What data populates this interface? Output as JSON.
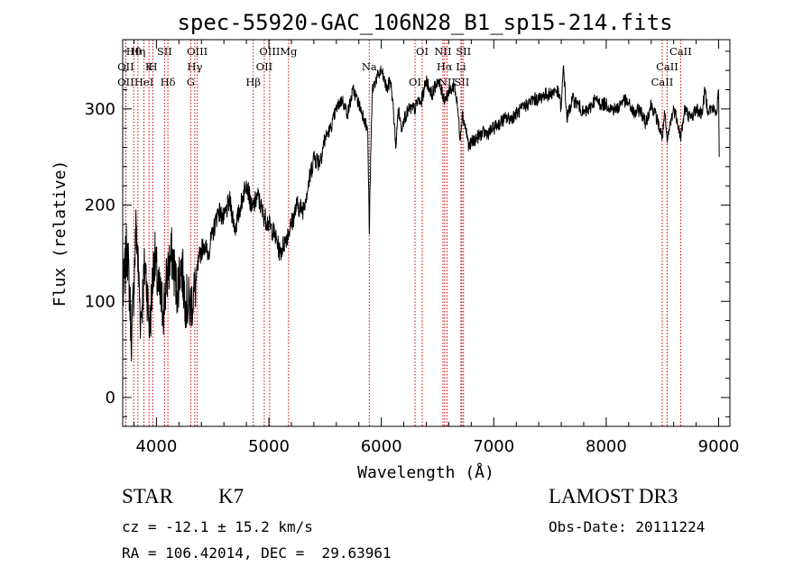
{
  "chart_data": {
    "type": "line",
    "title": "spec-55920-GAC_106N28_B1_sp15-214.fits",
    "xlabel": "Wavelength (Å)",
    "ylabel": "Flux (relative)",
    "xlim": [
      3700,
      9100
    ],
    "ylim": [
      -30,
      372
    ],
    "x_ticks": [
      4000,
      5000,
      6000,
      7000,
      8000,
      9000
    ],
    "y_ticks": [
      0,
      100,
      200,
      300
    ],
    "spectrum": {
      "name": "flux",
      "x": [
        3700,
        3740,
        3780,
        3820,
        3860,
        3900,
        3940,
        3980,
        4020,
        4060,
        4100,
        4140,
        4180,
        4220,
        4260,
        4300,
        4340,
        4380,
        4420,
        4460,
        4500,
        4550,
        4600,
        4650,
        4700,
        4750,
        4800,
        4850,
        4900,
        4950,
        5000,
        5050,
        5100,
        5150,
        5200,
        5250,
        5300,
        5350,
        5400,
        5450,
        5500,
        5550,
        5600,
        5650,
        5700,
        5750,
        5800,
        5850,
        5880,
        5893,
        5900,
        5920,
        5950,
        6000,
        6050,
        6080,
        6100,
        6130,
        6150,
        6180,
        6200,
        6250,
        6300,
        6330,
        6350,
        6380,
        6400,
        6450,
        6500,
        6530,
        6563,
        6590,
        6620,
        6650,
        6680,
        6700,
        6720,
        6750,
        6780,
        6800,
        6850,
        6900,
        6950,
        7000,
        7050,
        7100,
        7150,
        7200,
        7250,
        7300,
        7350,
        7400,
        7450,
        7500,
        7550,
        7580,
        7600,
        7620,
        7650,
        7700,
        7750,
        7800,
        7850,
        7900,
        7950,
        8000,
        8050,
        8100,
        8150,
        8200,
        8250,
        8300,
        8350,
        8400,
        8450,
        8498,
        8520,
        8542,
        8570,
        8600,
        8630,
        8662,
        8700,
        8750,
        8800,
        8850,
        8880,
        8900,
        8950,
        8980,
        9000,
        9005
      ],
      "y": [
        100,
        160,
        60,
        180,
        80,
        140,
        70,
        150,
        110,
        90,
        130,
        150,
        110,
        140,
        100,
        95,
        110,
        145,
        160,
        150,
        170,
        195,
        185,
        205,
        175,
        200,
        225,
        195,
        210,
        190,
        180,
        170,
        150,
        165,
        180,
        200,
        195,
        220,
        250,
        245,
        270,
        280,
        300,
        310,
        295,
        320,
        305,
        290,
        275,
        170,
        220,
        320,
        330,
        340,
        320,
        330,
        310,
        260,
        300,
        280,
        290,
        300,
        300,
        310,
        305,
        320,
        330,
        315,
        330,
        320,
        310,
        315,
        320,
        325,
        300,
        270,
        295,
        280,
        260,
        265,
        270,
        275,
        275,
        280,
        285,
        290,
        290,
        295,
        300,
        305,
        310,
        310,
        315,
        315,
        320,
        315,
        300,
        345,
        290,
        310,
        305,
        295,
        300,
        310,
        305,
        305,
        300,
        300,
        310,
        305,
        295,
        300,
        285,
        305,
        290,
        270,
        295,
        265,
        285,
        300,
        290,
        270,
        300,
        290,
        300,
        295,
        320,
        300,
        300,
        295,
        320,
        250
      ]
    },
    "spectral_lines": [
      {
        "label": "Hθ",
        "x": 3798
      },
      {
        "label": "K",
        "x": 3934
      },
      {
        "label": "Hδ",
        "x": 4102
      },
      {
        "label": "OIII",
        "x": 4363
      },
      {
        "label": "OII",
        "x": 3727
      },
      {
        "label": "HeI",
        "x": 3889
      },
      {
        "label": "SII",
        "x": 4072
      },
      {
        "label": "Hγ",
        "x": 4341
      },
      {
        "label": "OII",
        "x": 3727
      },
      {
        "label": "Hη",
        "x": 3835
      },
      {
        "label": "H",
        "x": 3969
      },
      {
        "label": "G",
        "x": 4305
      },
      {
        "label": "OIII",
        "x": 5007
      },
      {
        "label": "OII",
        "x": 4959
      },
      {
        "label": "Hβ",
        "x": 4861
      },
      {
        "label": "Mg",
        "x": 5175
      },
      {
        "label": "Na",
        "x": 5893
      },
      {
        "label": "OI",
        "x": 6300
      },
      {
        "label": "OI",
        "x": 6364
      },
      {
        "label": "Hα",
        "x": 6563
      },
      {
        "label": "SII",
        "x": 6716
      },
      {
        "label": "NII",
        "x": 6548
      },
      {
        "label": "Li",
        "x": 6708
      },
      {
        "label": "NII",
        "x": 6584
      },
      {
        "label": "SII",
        "x": 6731
      },
      {
        "label": "CaII",
        "x": 8542
      },
      {
        "label": "CaII",
        "x": 8498
      },
      {
        "label": "CaII",
        "x": 8662
      }
    ],
    "line_color": "#000000",
    "marker_color": "#cc0000"
  },
  "info": {
    "object_class": "STAR",
    "subclass": "K7",
    "survey": "LAMOST DR3",
    "redshift_text": "cz = -12.1 ± 15.2 km/s",
    "obs_date": "Obs-Date: 20111224",
    "coords": "RA = 106.42014, DEC =  29.63961"
  }
}
